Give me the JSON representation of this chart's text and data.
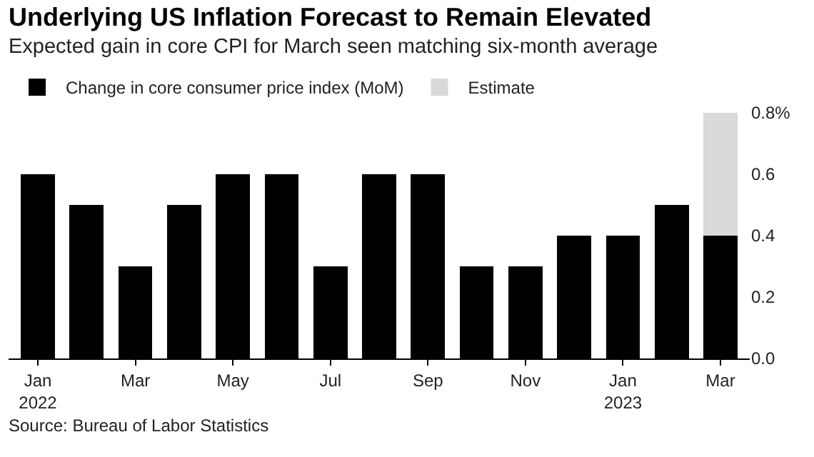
{
  "chart_data": {
    "type": "bar",
    "title": "Underlying US Inflation Forecast to Remain Elevated",
    "subtitle": "Expected gain in core CPI for March seen matching six-month average",
    "categories": [
      "Jan 2022",
      null,
      "Mar",
      null,
      "May",
      null,
      "Jul",
      null,
      "Sep",
      null,
      "Nov",
      null,
      "Jan 2023",
      null,
      "Mar"
    ],
    "series": [
      {
        "name": "Change in core consumer price index (MoM)",
        "color": "#000000",
        "values": [
          0.6,
          0.5,
          0.3,
          0.5,
          0.6,
          0.6,
          0.3,
          0.6,
          0.6,
          0.3,
          0.3,
          0.4,
          0.4,
          0.5,
          0.4
        ]
      },
      {
        "name": "Estimate",
        "color": "#d9d9d9",
        "values": [
          null,
          null,
          null,
          null,
          null,
          null,
          null,
          null,
          null,
          null,
          null,
          null,
          null,
          null,
          0.4
        ]
      }
    ],
    "stacked": true,
    "ylim": [
      0,
      0.8
    ],
    "yticks": [
      {
        "value": 0,
        "label": "0.0"
      },
      {
        "value": 0.2,
        "label": "0.2"
      },
      {
        "value": 0.4,
        "label": "0.4"
      },
      {
        "value": 0.6,
        "label": "0.6"
      },
      {
        "value": 0.8,
        "label": "0.8%"
      }
    ],
    "grid": false,
    "legend": "top left",
    "annotations": [
      "Source: Bureau of Labor Statistics"
    ]
  }
}
